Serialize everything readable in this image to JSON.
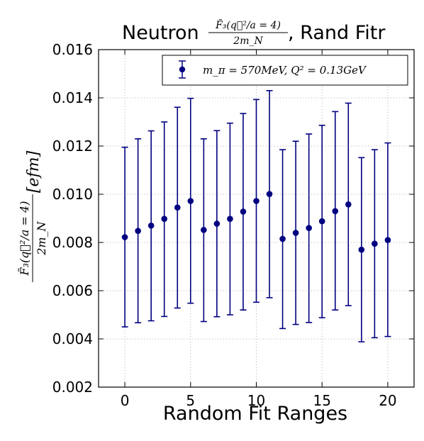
{
  "chart_data": {
    "type": "scatter",
    "title_text": "Neutron",
    "title_fraction_numerator": "F̃₃(q⃗²/a = 4)",
    "title_fraction_denominator": "2m_N",
    "title_suffix": ", Rand Fitr",
    "xlabel": "Random Fit Ranges",
    "ylabel_numerator": "F̃₃(q⃗²/a = 4)",
    "ylabel_denominator": "2m_N",
    "ylabel_unit": "[efm]",
    "xlim": [
      -2,
      22
    ],
    "ylim": [
      0.002,
      0.016
    ],
    "xticks": [
      "0",
      "5",
      "10",
      "15",
      "20"
    ],
    "yticks": [
      "0.002",
      "0.004",
      "0.006",
      "0.008",
      "0.010",
      "0.012",
      "0.014",
      "0.016"
    ],
    "grid": true,
    "legend_position": "top-right",
    "series": [
      {
        "name": "m_π = 570MeV,     Q² = 0.13GeV",
        "color": "#000080",
        "x": [
          0,
          1,
          2,
          3,
          4,
          5,
          6,
          7,
          8,
          9,
          10,
          11,
          12,
          13,
          14,
          15,
          16,
          17,
          18,
          19,
          20
        ],
        "y": [
          0.00822,
          0.00848,
          0.0087,
          0.00898,
          0.00945,
          0.00972,
          0.00852,
          0.00878,
          0.00898,
          0.00928,
          0.00972,
          0.01001,
          0.00815,
          0.0084,
          0.0086,
          0.00888,
          0.0093,
          0.00958,
          0.0077,
          0.00795,
          0.0081
        ],
        "yerr_low": [
          0.0045,
          0.00467,
          0.00475,
          0.00493,
          0.00528,
          0.00548,
          0.00472,
          0.00492,
          0.005,
          0.0052,
          0.00552,
          0.00571,
          0.00443,
          0.0046,
          0.00468,
          0.00488,
          0.0052,
          0.00538,
          0.00388,
          0.00405,
          0.0041
        ],
        "yerr_high": [
          0.01195,
          0.0123,
          0.01263,
          0.013,
          0.01361,
          0.01398,
          0.0123,
          0.01264,
          0.01295,
          0.01335,
          0.01393,
          0.0143,
          0.01185,
          0.0122,
          0.0125,
          0.01286,
          0.01343,
          0.01378,
          0.01152,
          0.01185,
          0.01213
        ]
      }
    ]
  }
}
